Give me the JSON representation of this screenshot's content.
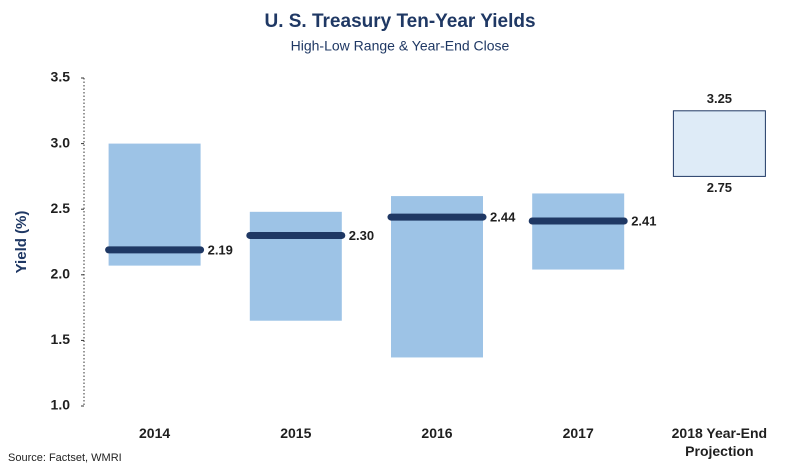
{
  "chart_data": {
    "type": "range",
    "title": "U. S. Treasury Ten-Year Yields",
    "subtitle": "High-Low Range & Year-End Close",
    "ylabel": "Yield (%)",
    "source": "Source: Factset, WMRI",
    "categories": [
      "2014",
      "2015",
      "2016",
      "2017",
      "2018 Year-End Projection"
    ],
    "low": {
      "values": [
        2.07,
        1.65,
        1.37,
        2.04,
        2.75
      ]
    },
    "high": {
      "values": [
        3.0,
        2.48,
        2.6,
        2.62,
        3.25
      ]
    },
    "close": {
      "values": [
        2.19,
        2.3,
        2.44,
        2.41,
        null
      ],
      "value_labels": [
        "2.19",
        "2.30",
        "2.44",
        "2.41",
        null
      ]
    },
    "range_color": "#9dc3e6",
    "projection_color": "#deebf7",
    "close_color": "#1f3864",
    "ylim": [
      1.0,
      3.5
    ],
    "yticks": [
      {
        "value": 1.0,
        "label": "1.0"
      },
      1.5,
      {
        "value": 2.0,
        "label": "2.0"
      },
      2.5,
      {
        "value": 3.0,
        "label": "3.0"
      },
      3.5
    ],
    "grid": false
  }
}
